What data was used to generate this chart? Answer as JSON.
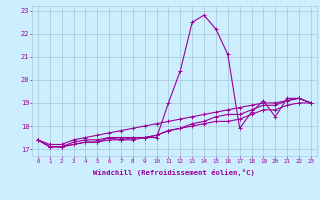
{
  "xlabel": "Windchill (Refroidissement éolien,°C)",
  "ylabel": "",
  "background_color": "#cceeff",
  "grid_color": "#aaccdd",
  "line_color": "#990099",
  "x_ticks": [
    0,
    1,
    2,
    3,
    4,
    5,
    6,
    7,
    8,
    9,
    10,
    11,
    12,
    13,
    14,
    15,
    16,
    17,
    18,
    19,
    20,
    21,
    22,
    23
  ],
  "y_ticks": [
    17,
    18,
    19,
    20,
    21,
    22,
    23
  ],
  "xlim": [
    -0.5,
    23.5
  ],
  "ylim": [
    16.7,
    23.2
  ],
  "series": [
    [
      17.4,
      17.1,
      17.1,
      17.2,
      17.3,
      17.3,
      17.5,
      17.4,
      17.4,
      17.5,
      17.5,
      19.0,
      20.4,
      22.5,
      22.8,
      22.2,
      21.1,
      17.9,
      18.6,
      19.1,
      18.4,
      19.2,
      19.2,
      19.0
    ],
    [
      17.4,
      17.1,
      17.1,
      17.3,
      17.4,
      17.4,
      17.5,
      17.5,
      17.5,
      17.5,
      17.6,
      17.8,
      17.9,
      18.1,
      18.2,
      18.4,
      18.5,
      18.5,
      18.7,
      18.9,
      18.9,
      19.1,
      19.2,
      19.0
    ],
    [
      17.4,
      17.1,
      17.1,
      17.2,
      17.3,
      17.3,
      17.4,
      17.4,
      17.5,
      17.5,
      17.6,
      17.8,
      17.9,
      18.0,
      18.1,
      18.2,
      18.2,
      18.3,
      18.5,
      18.7,
      18.7,
      18.9,
      19.0,
      19.0
    ],
    [
      17.4,
      17.2,
      17.2,
      17.4,
      17.5,
      17.6,
      17.7,
      17.8,
      17.9,
      18.0,
      18.1,
      18.2,
      18.3,
      18.4,
      18.5,
      18.6,
      18.7,
      18.8,
      18.9,
      19.0,
      19.0,
      19.1,
      19.2,
      19.0
    ]
  ]
}
